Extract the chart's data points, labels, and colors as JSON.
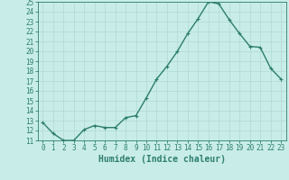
{
  "x": [
    0,
    1,
    2,
    3,
    4,
    5,
    6,
    7,
    8,
    9,
    10,
    11,
    12,
    13,
    14,
    15,
    16,
    17,
    18,
    19,
    20,
    21,
    22,
    23
  ],
  "y": [
    12.8,
    11.7,
    11.0,
    11.0,
    12.1,
    12.5,
    12.3,
    12.3,
    13.3,
    13.5,
    15.3,
    17.2,
    18.5,
    20.0,
    21.8,
    23.3,
    25.0,
    24.8,
    23.2,
    21.8,
    20.5,
    20.4,
    18.3,
    17.2
  ],
  "line_color": "#2d7d6e",
  "marker": "+",
  "marker_size": 3,
  "bg_color": "#c8ede8",
  "grid_color": "#b0d8d2",
  "xlabel": "Humidex (Indice chaleur)",
  "ylim": [
    11,
    25
  ],
  "xlim_min": -0.5,
  "xlim_max": 23.5,
  "yticks": [
    11,
    12,
    13,
    14,
    15,
    16,
    17,
    18,
    19,
    20,
    21,
    22,
    23,
    24,
    25
  ],
  "xtick_labels": [
    "0",
    "1",
    "2",
    "3",
    "4",
    "5",
    "6",
    "7",
    "8",
    "9",
    "10",
    "11",
    "12",
    "13",
    "14",
    "15",
    "16",
    "17",
    "18",
    "19",
    "20",
    "21",
    "22",
    "23"
  ],
  "axis_color": "#2d7d6e",
  "tick_label_color": "#2d7d6e",
  "xlabel_color": "#2d7d6e",
  "xlabel_fontsize": 7,
  "tick_fontsize": 5.5,
  "linewidth": 1.0
}
